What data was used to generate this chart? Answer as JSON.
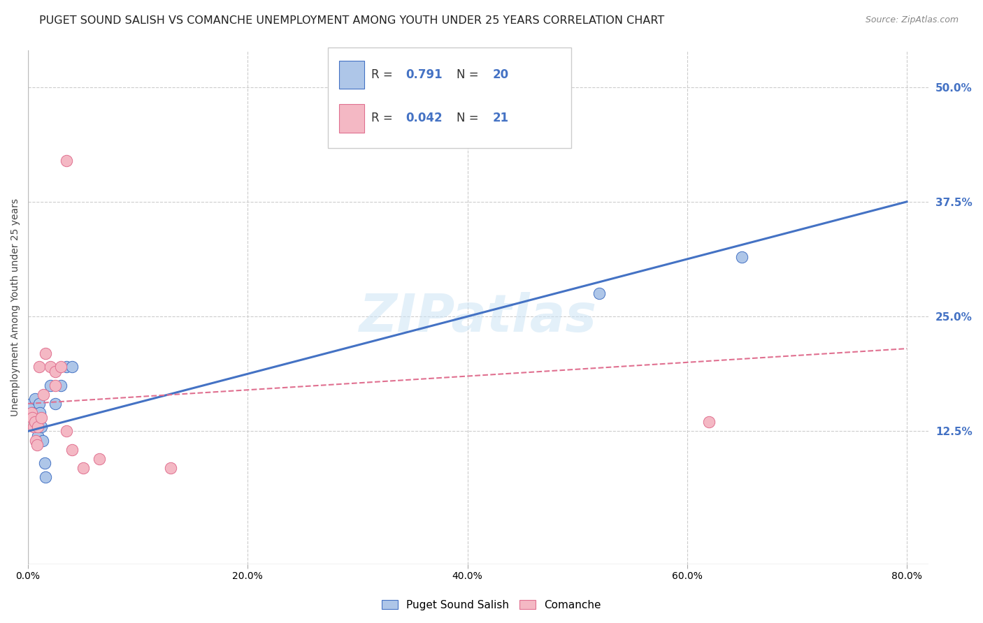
{
  "title": "PUGET SOUND SALISH VS COMANCHE UNEMPLOYMENT AMONG YOUTH UNDER 25 YEARS CORRELATION CHART",
  "source": "Source: ZipAtlas.com",
  "ylabel": "Unemployment Among Youth under 25 years",
  "xlabel_ticks": [
    "0.0%",
    "20.0%",
    "40.0%",
    "60.0%",
    "80.0%"
  ],
  "xlabel_vals": [
    0.0,
    0.2,
    0.4,
    0.6,
    0.8
  ],
  "ytick_labels": [
    "12.5%",
    "25.0%",
    "37.5%",
    "50.0%"
  ],
  "ytick_vals": [
    0.125,
    0.25,
    0.375,
    0.5
  ],
  "xlim": [
    0.0,
    0.82
  ],
  "ylim": [
    -0.02,
    0.54
  ],
  "watermark": "ZIPatlas",
  "blue_scatter_x": [
    0.003,
    0.004,
    0.005,
    0.006,
    0.007,
    0.008,
    0.009,
    0.01,
    0.011,
    0.012,
    0.013,
    0.015,
    0.016,
    0.02,
    0.025,
    0.03,
    0.035,
    0.04,
    0.52,
    0.65
  ],
  "blue_scatter_y": [
    0.155,
    0.145,
    0.14,
    0.16,
    0.135,
    0.13,
    0.12,
    0.155,
    0.145,
    0.13,
    0.115,
    0.09,
    0.075,
    0.175,
    0.155,
    0.175,
    0.195,
    0.195,
    0.275,
    0.315
  ],
  "pink_scatter_x": [
    0.003,
    0.004,
    0.005,
    0.006,
    0.007,
    0.008,
    0.009,
    0.01,
    0.012,
    0.014,
    0.016,
    0.02,
    0.025,
    0.025,
    0.03,
    0.035,
    0.04,
    0.05,
    0.065,
    0.13,
    0.62
  ],
  "pink_scatter_y": [
    0.145,
    0.14,
    0.13,
    0.135,
    0.115,
    0.11,
    0.13,
    0.195,
    0.14,
    0.165,
    0.21,
    0.195,
    0.175,
    0.19,
    0.195,
    0.125,
    0.105,
    0.085,
    0.095,
    0.085,
    0.135
  ],
  "pink_outlier_x": [
    0.035
  ],
  "pink_outlier_y": [
    0.42
  ],
  "blue_line_x": [
    0.0,
    0.8
  ],
  "blue_line_y": [
    0.125,
    0.375
  ],
  "pink_line_x": [
    0.0,
    0.8
  ],
  "pink_line_y": [
    0.155,
    0.215
  ],
  "blue_color": "#4472c4",
  "pink_color": "#e07090",
  "blue_scatter_color": "#aec6e8",
  "pink_scatter_color": "#f4b8c4",
  "background_color": "#ffffff",
  "grid_color": "#cccccc",
  "title_fontsize": 11.5,
  "axis_label_fontsize": 10,
  "tick_fontsize": 10,
  "right_tick_color": "#4472c4",
  "legend_blue_color": "#aec6e8",
  "legend_pink_color": "#f4b8c4",
  "R_blue": 0.791,
  "N_blue": 20,
  "R_pink": 0.042,
  "N_pink": 21,
  "legend_label_blue": "Puget Sound Salish",
  "legend_label_pink": "Comanche"
}
